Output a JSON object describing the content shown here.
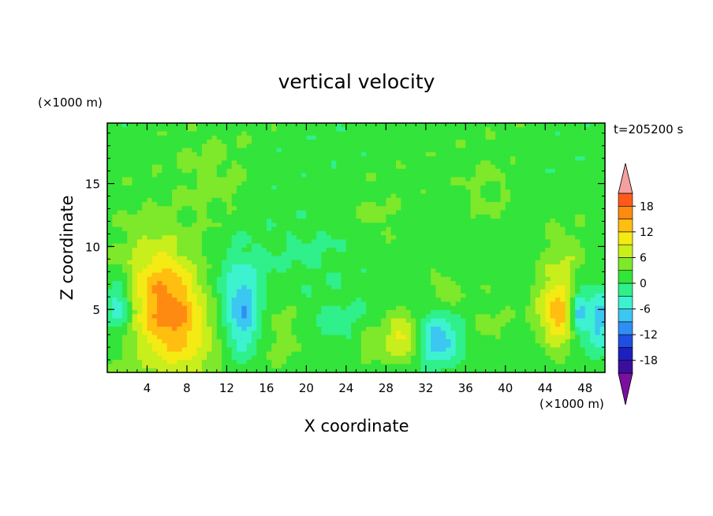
{
  "chart_data": {
    "type": "heatmap",
    "title": "vertical velocity",
    "xlabel": "X coordinate",
    "ylabel": "Z coordinate",
    "x_unit": "(×1000 m)",
    "y_unit": "(×1000 m)",
    "time_label": "t=205200 s",
    "xlim": [
      0,
      50
    ],
    "ylim": [
      0,
      19.8
    ],
    "x_ticks": [
      4,
      8,
      12,
      16,
      20,
      24,
      28,
      32,
      36,
      40,
      44,
      48
    ],
    "y_ticks": [
      5,
      10,
      15
    ],
    "colorbar": {
      "range": [
        -21,
        21
      ],
      "levels": [
        -21,
        -18,
        -15,
        -12,
        -9,
        -6,
        -3,
        0,
        3,
        6,
        9,
        12,
        15,
        18,
        21
      ],
      "tick_labels": [
        18,
        12,
        6,
        0,
        -6,
        -12,
        -18
      ],
      "colors": [
        "#7b0fa0",
        "#3b0e9e",
        "#1f1fbf",
        "#1e4fe0",
        "#2f8ef4",
        "#3cc6f2",
        "#3cf2cf",
        "#2ff08a",
        "#33e43b",
        "#7ee82a",
        "#c8ee1c",
        "#f4ea14",
        "#ffbe10",
        "#ff8a12",
        "#ff5a1a",
        "#ff2a2a",
        "#f4a0a0"
      ],
      "extend": "both"
    },
    "background_value": 1.5,
    "features": [
      {
        "x": 6.2,
        "z": 5.5,
        "sx": 2.6,
        "sz": 3.6,
        "amp": 12,
        "tilt": 0.25
      },
      {
        "x": 5.5,
        "z": 3.5,
        "sx": 3.8,
        "sz": 3.2,
        "amp": 4
      },
      {
        "x": 1.2,
        "z": 5.2,
        "sx": 1.0,
        "sz": 1.6,
        "amp": -9
      },
      {
        "x": 13.6,
        "z": 4.5,
        "sx": 1.2,
        "sz": 2.4,
        "amp": -8
      },
      {
        "x": 13.0,
        "z": 6.5,
        "sx": 2.2,
        "sz": 2.6,
        "amp": -4
      },
      {
        "x": 17.5,
        "z": 3.2,
        "sx": 1.8,
        "sz": 2.2,
        "amp": 3
      },
      {
        "x": 23.0,
        "z": 4.0,
        "sx": 2.5,
        "sz": 1.6,
        "amp": -2.5
      },
      {
        "x": 26.5,
        "z": 2.3,
        "sx": 1.0,
        "sz": 1.0,
        "amp": 4
      },
      {
        "x": 29.7,
        "z": 2.8,
        "sx": 1.3,
        "sz": 1.3,
        "amp": 9
      },
      {
        "x": 33.3,
        "z": 2.6,
        "sx": 1.6,
        "sz": 1.4,
        "amp": -10
      },
      {
        "x": 34.0,
        "z": 6.5,
        "sx": 1.0,
        "sz": 1.0,
        "amp": 4
      },
      {
        "x": 38.5,
        "z": 3.5,
        "sx": 2.0,
        "sz": 2.0,
        "amp": 2
      },
      {
        "x": 45.3,
        "z": 4.6,
        "sx": 1.5,
        "sz": 2.2,
        "amp": 12
      },
      {
        "x": 47.3,
        "z": 4.8,
        "sx": 0.6,
        "sz": 1.4,
        "amp": -11
      },
      {
        "x": 49.3,
        "z": 4.2,
        "sx": 1.0,
        "sz": 1.8,
        "amp": -9
      },
      {
        "x": 46.0,
        "z": 9.5,
        "sx": 1.5,
        "sz": 1.8,
        "amp": 3
      },
      {
        "x": 44.0,
        "z": 2.2,
        "sx": 2.5,
        "sz": 1.2,
        "amp": -2
      },
      {
        "x": 20.0,
        "z": 9.5,
        "sx": 3.0,
        "sz": 2.0,
        "amp": -2
      },
      {
        "x": 27.0,
        "z": 12.5,
        "sx": 2.0,
        "sz": 1.5,
        "amp": 2
      },
      {
        "x": 38.0,
        "z": 14.5,
        "sx": 2.0,
        "sz": 2.0,
        "amp": 2
      },
      {
        "x": 10.5,
        "z": 15.5,
        "sx": 2.5,
        "sz": 3.0,
        "amp": 2.5
      }
    ]
  }
}
